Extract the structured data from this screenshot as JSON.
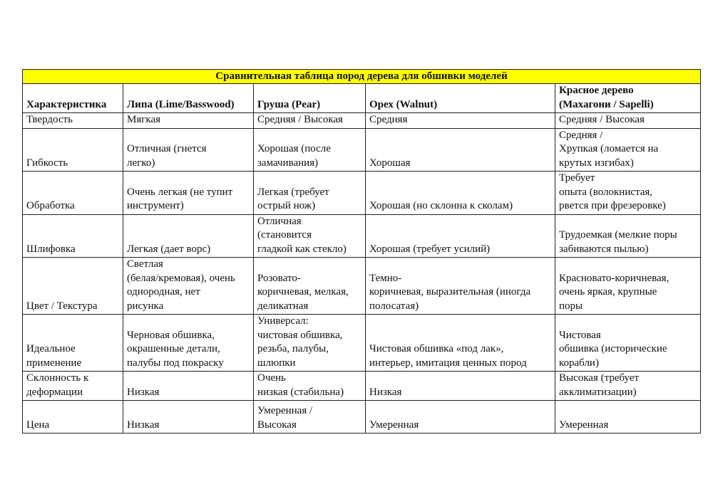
{
  "title": "Сравнительная таблица пород дерева для обшивки моделей",
  "headers": [
    "Характеристика",
    "Липа (Lime/Basswood)",
    "Груша (Pear)",
    "Орех (Walnut)",
    "Красное дерево\n(Махагони / Sapelli)"
  ],
  "rows": [
    [
      "Твердость",
      "Мягкая",
      "Средняя / Высокая",
      "Средняя",
      "Средняя / Высокая"
    ],
    [
      "Гибкость",
      "Отличная (гнется\nлегко)",
      "Хорошая (после\nзамачивания)",
      "Хорошая",
      "Средняя /\nХрупкая (ломается на\nкрутых изгибах)"
    ],
    [
      "Обработка",
      "Очень легкая (не тупит\nинструмент)",
      "Легкая (требует\nострый нож)",
      "Хорошая (но склонна к сколам)",
      "Требует\nопыта (волокнистая,\nрвется при фрезеровке)"
    ],
    [
      "Шлифовка",
      "Легкая (дает ворс)",
      "Отличная\n(становится\nгладкой как стекло)",
      "Хорошая (требует усилий)",
      "Трудоемкая (мелкие поры\nзабиваются пылью)"
    ],
    [
      "Цвет / Текстура",
      "Светлая\n(белая/кремовая), очень\nоднородная, нет\nрисунка",
      "Розовато-\nкоричневая, мелкая,\nделикатная",
      "Темно-\nкоричневая, выразительная (иногда\nполосатая)",
      "Красновато-коричневая,\nочень яркая, крупные\nпоры"
    ],
    [
      "Идеальное\nприменение",
      "Черновая обшивка,\nокрашенные детали,\nпалубы под покраску",
      "Универсал:\nчистовая обшивка,\nрезьба, палубы,\nшлюпки",
      "Чистовая обшивка «под лак»,\nинтерьер, имитация ценных пород",
      "Чистовая\nобшивка (исторические\nкорабли)"
    ],
    [
      "Склонность к\nдеформации",
      "Низкая",
      "Очень\nнизкая (стабильна)",
      "Низкая",
      "Высокая (требует\nакклиматизации)"
    ],
    [
      "Цена",
      "Низкая",
      "Умеренная /\nВысокая",
      "Умеренная",
      "Умеренная"
    ]
  ],
  "colors": {
    "title_background": "#ffff00",
    "border": "#222222"
  }
}
